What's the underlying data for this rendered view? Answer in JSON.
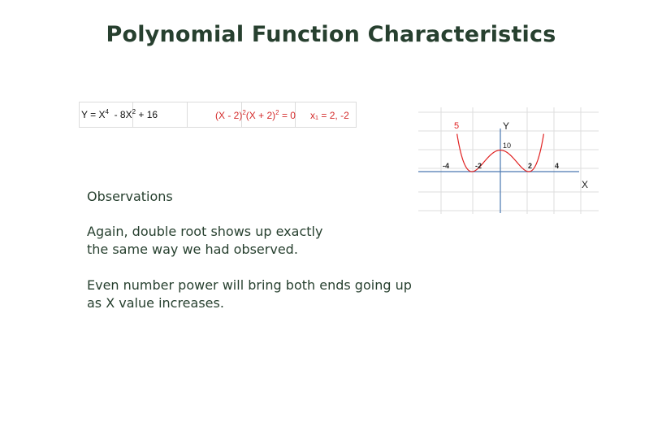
{
  "slide": {
    "title": "Polynomial Function Characteristics"
  },
  "equation_strip": {
    "main": {
      "prefix": "Y = X",
      "exp1": "4",
      "mid": "  - 8X",
      "exp2": "2",
      "suffix": " + 16"
    },
    "factored": {
      "part1": "(X - 2)",
      "exp1": "2",
      "part2": "(X + 2)",
      "exp2": "2",
      "part3": " = 0"
    },
    "roots": "x₁ = 2, -2"
  },
  "observations": {
    "heading": "Observations",
    "para1_line1": "Again, double root shows up exactly",
    "para1_line2": "the same way we had observed.",
    "para2_line1": "Even number power will bring both ends going up",
    "para2_line2": "as X value increases."
  },
  "graph": {
    "labels": {
      "y_axis": "Y",
      "x_axis": "X",
      "y_tick_10": "10",
      "curve_label": "5",
      "x_tick_neg4": "-4",
      "x_tick_neg2": "-2",
      "x_tick_2": "2",
      "x_tick_4": "4"
    },
    "colors": {
      "curve": "#e02020",
      "axis": "#4a78b0",
      "grid": "#dddddd"
    },
    "function": "x^4 - 8x^2 + 16"
  }
}
